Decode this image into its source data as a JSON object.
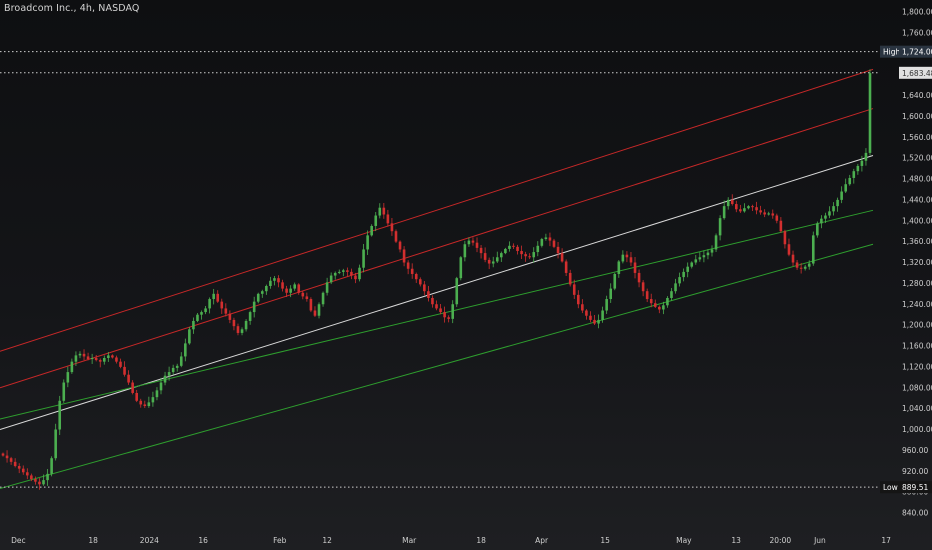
{
  "header": {
    "title": "Broadcom Inc., 4h, NASDAQ"
  },
  "colors": {
    "up": "#4caf50",
    "down": "#d32f2f",
    "mid_line": "#d9d9d9",
    "upper_channel": "#c62828",
    "lower_channel": "#2e9e2e",
    "text": "#cfcfcf",
    "current_price_tag": "#e0e0e0",
    "high_tag": "#2a3440"
  },
  "chart_data": {
    "type": "candlestick",
    "title": "Broadcom Inc., 4h, NASDAQ",
    "ylim": [
      825,
      1820
    ],
    "y_ticks": [
      "840.00",
      "880.00",
      "920.00",
      "960.00",
      "1,000.00",
      "1,040.00",
      "1,080.00",
      "1,120.00",
      "1,160.00",
      "1,200.00",
      "1,240.00",
      "1,280.00",
      "1,320.00",
      "1,360.00",
      "1,400.00",
      "1,440.00",
      "1,480.00",
      "1,520.00",
      "1,560.00",
      "1,600.00",
      "1,640.00",
      "1,680.00",
      "1,720.00",
      "1,760.00",
      "1,800.00"
    ],
    "x_ticks": [
      "Dec",
      "18",
      "2024",
      "16",
      "Feb",
      "12",
      "Mar",
      "18",
      "Apr",
      "15",
      "May",
      "13",
      "20:00",
      "Jun",
      "17"
    ],
    "markers": {
      "high": {
        "label": "High",
        "value_text": "1,724.00",
        "value": 1724
      },
      "last": {
        "value_text": "1,683.48",
        "value": 1683.48
      },
      "low": {
        "label": "Low",
        "value_text": "889.51",
        "value": 889.51
      }
    },
    "regression_channel": {
      "mid": [
        1000,
        1525
      ],
      "upper_outer": [
        1150,
        1690
      ],
      "upper_inner": [
        1080,
        1615
      ],
      "lower_inner": [
        1020,
        1420
      ],
      "lower_outer": [
        887,
        1355
      ]
    },
    "closes": [
      950,
      945,
      938,
      930,
      925,
      918,
      912,
      905,
      900,
      895,
      903,
      915,
      945,
      1000,
      1055,
      1090,
      1110,
      1130,
      1142,
      1145,
      1140,
      1135,
      1137,
      1133,
      1130,
      1137,
      1142,
      1138,
      1130,
      1120,
      1105,
      1090,
      1070,
      1055,
      1048,
      1045,
      1052,
      1062,
      1075,
      1090,
      1103,
      1110,
      1118,
      1122,
      1140,
      1165,
      1192,
      1208,
      1220,
      1225,
      1232,
      1250,
      1260,
      1245,
      1232,
      1222,
      1210,
      1198,
      1185,
      1192,
      1208,
      1225,
      1245,
      1260,
      1265,
      1275,
      1285,
      1290,
      1282,
      1270,
      1262,
      1270,
      1278,
      1262,
      1255,
      1250,
      1228,
      1218,
      1240,
      1262,
      1282,
      1295,
      1300,
      1302,
      1305,
      1302,
      1295,
      1288,
      1310,
      1345,
      1372,
      1390,
      1410,
      1425,
      1412,
      1395,
      1380,
      1360,
      1345,
      1320,
      1308,
      1298,
      1288,
      1278,
      1265,
      1252,
      1240,
      1232,
      1225,
      1215,
      1212,
      1240,
      1290,
      1330,
      1355,
      1362,
      1358,
      1348,
      1338,
      1325,
      1318,
      1322,
      1330,
      1338,
      1346,
      1352,
      1350,
      1342,
      1336,
      1332,
      1330,
      1340,
      1352,
      1365,
      1368,
      1362,
      1350,
      1338,
      1322,
      1300,
      1278,
      1258,
      1240,
      1228,
      1218,
      1210,
      1203,
      1210,
      1228,
      1250,
      1270,
      1298,
      1322,
      1335,
      1330,
      1320,
      1300,
      1282,
      1265,
      1250,
      1242,
      1235,
      1230,
      1238,
      1252,
      1265,
      1280,
      1292,
      1302,
      1312,
      1320,
      1326,
      1330,
      1334,
      1339,
      1345,
      1372,
      1405,
      1428,
      1440,
      1432,
      1422,
      1418,
      1424,
      1428,
      1426,
      1420,
      1416,
      1412,
      1414,
      1410,
      1400,
      1380,
      1355,
      1335,
      1320,
      1310,
      1308,
      1312,
      1318,
      1372,
      1395,
      1404,
      1410,
      1418,
      1428,
      1440,
      1456,
      1470,
      1482,
      1495,
      1505,
      1515,
      1530,
      1683
    ]
  }
}
